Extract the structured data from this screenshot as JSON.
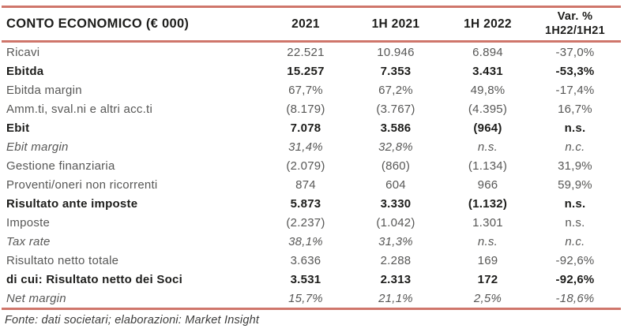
{
  "colors": {
    "accent": "#CF766B",
    "text": "#575756",
    "strong": "#1D1D1B",
    "footer": "#3C3C3B"
  },
  "chart_data": {
    "type": "table",
    "title": "CONTO ECONOMICO (€ 000)",
    "columns": [
      "2021",
      "1H 2021",
      "1H 2022",
      "Var. % 1H22/1H21"
    ],
    "header": {
      "col1": "2021",
      "col2": "1H 2021",
      "col3": "1H 2022",
      "col4_line1": "Var. %",
      "col4_line2": "1H22/1H21"
    },
    "rows": [
      {
        "label": "Ricavi",
        "style": "regular",
        "values": [
          "22.521",
          "10.946",
          "6.894",
          "-37,0%"
        ]
      },
      {
        "label": "Ebitda",
        "style": "bold",
        "values": [
          "15.257",
          "7.353",
          "3.431",
          "-53,3%"
        ]
      },
      {
        "label": "Ebitda margin",
        "style": "regular",
        "values": [
          "67,7%",
          "67,2%",
          "49,8%",
          "-17,4%"
        ]
      },
      {
        "label": "Amm.ti, sval.ni e altri acc.ti",
        "style": "regular",
        "values": [
          "(8.179)",
          "(3.767)",
          "(4.395)",
          "16,7%"
        ]
      },
      {
        "label": "Ebit",
        "style": "bold",
        "values": [
          "7.078",
          "3.586",
          "(964)",
          "n.s."
        ]
      },
      {
        "label": "Ebit margin",
        "style": "italic",
        "values": [
          "31,4%",
          "32,8%",
          "n.s.",
          "n.c."
        ]
      },
      {
        "label": "Gestione finanziaria",
        "style": "regular",
        "values": [
          "(2.079)",
          "(860)",
          "(1.134)",
          "31,9%"
        ]
      },
      {
        "label": "Proventi/oneri non ricorrenti",
        "style": "regular",
        "values": [
          "874",
          "604",
          "966",
          "59,9%"
        ]
      },
      {
        "label": "Risultato ante imposte",
        "style": "bold",
        "values": [
          "5.873",
          "3.330",
          "(1.132)",
          "n.s."
        ]
      },
      {
        "label": "Imposte",
        "style": "regular",
        "values": [
          "(2.237)",
          "(1.042)",
          "1.301",
          "n.s."
        ]
      },
      {
        "label": "Tax rate",
        "style": "italic",
        "values": [
          "38,1%",
          "31,3%",
          "n.s.",
          "n.c."
        ]
      },
      {
        "label": "Risultato netto totale",
        "style": "regular",
        "values": [
          "3.636",
          "2.288",
          "169",
          "-92,6%"
        ]
      },
      {
        "label": "di cui: Risultato netto dei Soci",
        "style": "bold",
        "values": [
          "3.531",
          "2.313",
          "172",
          "-92,6%"
        ]
      },
      {
        "label": "Net margin",
        "style": "italic",
        "values": [
          "15,7%",
          "21,1%",
          "2,5%",
          "-18,6%"
        ]
      }
    ],
    "source_note": "Fonte: dati societari; elaborazioni: Market Insight"
  }
}
